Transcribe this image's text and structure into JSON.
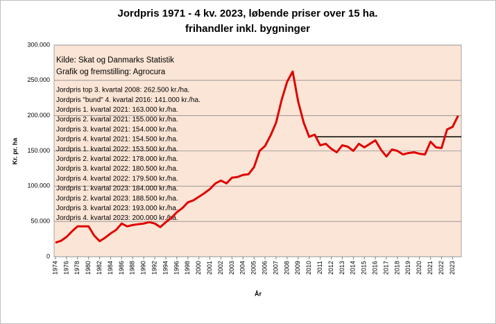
{
  "chart_data": {
    "type": "line",
    "title": "Jordpris 1971 - 4 kv. 2023, løbende priser over 15 ha.",
    "subtitle": "frihandler inkl. bygninger",
    "y_label": "Kr. pr. ha",
    "x_label": "År",
    "source": [
      "Kilde: Skat og Danmarks Statistik",
      "Grafik og fremstilling: Agrocura"
    ],
    "annotations": [
      "Jordpris top 3. kvartal 2008: 262.500 kr./ha.",
      "Jordpris \"bund\" 4. kvartal 2016: 141.000 kr./ha.",
      "Jordpris 1. kvartal 2021: 163.000 kr./ha.",
      "Jordpris 2. kvartal 2021: 155.000 kr./ha.",
      "Jordpris 3. kvartal 2021: 154.000 kr./ha.",
      "Jordpris 4. kvartal 2021: 154.500 kr./ha.",
      "Jordpris 1. kvartal 2022: 153.500 kr./ha.",
      "Jordpris 2. kvartal 2022: 178.000 kr./ha.",
      "Jordpris 3. kvartal 2022: 180.500 kr./ha.",
      "Jordpris 4. kvartal 2022: 179.500 kr./ha.",
      "Jordpris 1. kvartal 2023: 184.000 kr./ha.",
      "Jordpris 2. kvartal 2023: 188.500 kr./ha.",
      "Jordpris 3. kvartal 2023: 193.000 kr./ha.",
      "Jordpris 4. kvartal 2023: 200.000 kr./ha."
    ],
    "categories": [
      "1974",
      null,
      "1976",
      null,
      "1978",
      null,
      "1980",
      null,
      "1982",
      null,
      "1984",
      null,
      "1986",
      null,
      "1988",
      null,
      "1990",
      null,
      "1992",
      null,
      "1994",
      null,
      "1996",
      null,
      "1998",
      null,
      "2000",
      null,
      "2001",
      null,
      "2002",
      null,
      "2003",
      null,
      "2004",
      null,
      "2005",
      null,
      "2006",
      null,
      "2007",
      null,
      "2008",
      null,
      "2009",
      null,
      "2010",
      null,
      "2011",
      null,
      "2012",
      null,
      "2013",
      null,
      "2014",
      null,
      "2015",
      null,
      "2016",
      null,
      "2017",
      null,
      "2018",
      null,
      "2019",
      null,
      "2020",
      null,
      "2021",
      null,
      "2022",
      null,
      "2023",
      null
    ],
    "series": [
      {
        "name": "Jordpris",
        "color": "#e00000",
        "values": [
          20000,
          22500,
          28000,
          36000,
          43000,
          43000,
          43000,
          30000,
          22000,
          27000,
          33000,
          38000,
          47000,
          43000,
          45000,
          46000,
          47000,
          49000,
          47000,
          42000,
          49000,
          55000,
          63000,
          69000,
          77000,
          80000,
          85000,
          90000,
          96000,
          104000,
          108000,
          104000,
          112000,
          113000,
          116000,
          117000,
          127000,
          150000,
          157000,
          172000,
          190000,
          222000,
          248000,
          262500,
          220000,
          190000,
          170000,
          173000,
          158000,
          160000,
          153000,
          148000,
          158000,
          156000,
          150000,
          160000,
          155000,
          160000,
          165000,
          152000,
          142000,
          152000,
          150000,
          145000,
          147000,
          148000,
          146000,
          145000,
          163000,
          155000,
          154000,
          180500,
          184000,
          200000
        ]
      }
    ],
    "reference_line": {
      "value": 170000,
      "from": "2011",
      "color": "#000000"
    },
    "ylim": [
      0,
      300000
    ],
    "yticks": [
      0,
      {
        "value": 50000,
        "label": "50.000"
      },
      {
        "value": 100000,
        "label": "100.000"
      },
      {
        "value": 150000,
        "label": "150.000"
      },
      {
        "value": 200000,
        "label": "200.000"
      },
      {
        "value": 250000,
        "label": "250.000"
      },
      {
        "value": 300000,
        "label": "300.000"
      }
    ],
    "grid": true,
    "plot_background": "#fbe5d6"
  }
}
